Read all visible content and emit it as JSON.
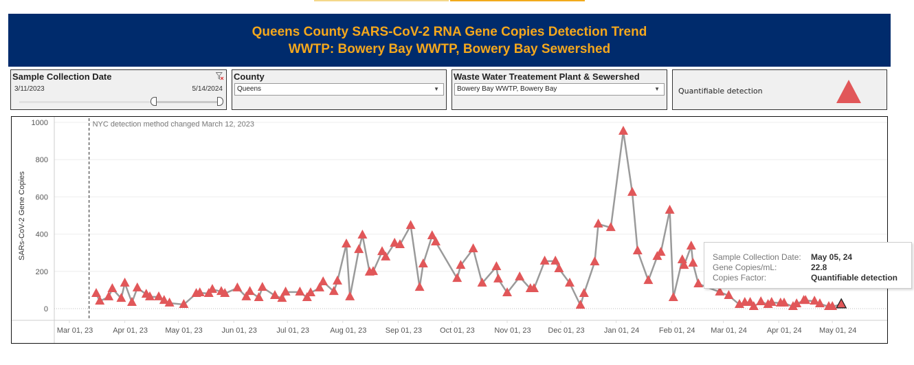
{
  "header": {
    "title_line1": "Queens County SARS-CoV-2 RNA Gene Copies Detection Trend",
    "title_line2": "WWTP: Bowery Bay WWTP, Bowery Bay Sewershed"
  },
  "filters": {
    "date": {
      "title": "Sample Collection Date",
      "start": "3/11/2023",
      "end": "5/14/2024",
      "clear_icon": "filter-clear-icon"
    },
    "county": {
      "title": "County",
      "value": "Queens"
    },
    "wwtp": {
      "title": "Waste Water Treatement Plant & Sewershed",
      "value": "Bowery Bay WWTP, Bowery Bay"
    },
    "legend": {
      "label": "Quantifiable detection",
      "color": "#e15759",
      "icon": "triangle-icon"
    }
  },
  "tooltip": {
    "rows": [
      {
        "key": "Sample Collection Date:",
        "value": "May 05, 24"
      },
      {
        "key": "Gene Copies/mL:",
        "value": "22.8"
      },
      {
        "key": "Copies Factor:",
        "value": "Quantifiable detection"
      }
    ]
  },
  "chart_data": {
    "type": "line",
    "title": "Queens County SARS-CoV-2 RNA Gene Copies Detection Trend",
    "ylabel": "SARs-CoV-2 Gene Copies",
    "xlabel": "",
    "ylim": [
      -80,
      1010
    ],
    "yticks": [
      0,
      200,
      400,
      600,
      800,
      1000
    ],
    "xticks": [
      "Mar 01, 23",
      "Apr 01, 23",
      "May 01, 23",
      "Jun 01, 23",
      "Jul 01, 23",
      "Aug 01, 23",
      "Sep 01, 23",
      "Oct 01, 23",
      "Nov 01, 23",
      "Dec 01, 23",
      "Jan 01, 24",
      "Feb 01, 24",
      "Mar 01, 24",
      "Apr 01, 24",
      "May 01, 24"
    ],
    "xrange_days": [
      -8,
      455
    ],
    "annotation": {
      "text": "NYC detection method changed March 12, 2023",
      "day": 11
    },
    "line_color": "#9a9a9a",
    "marker_color": "#e15759",
    "series": [
      {
        "name": "Quantifiable detection",
        "days": [
          15,
          17,
          22,
          24,
          29,
          31,
          35,
          38,
          43,
          45,
          50,
          53,
          56,
          64,
          71,
          73,
          78,
          80,
          85,
          87,
          94,
          99,
          101,
          106,
          108,
          115,
          119,
          121,
          129,
          133,
          135,
          140,
          142,
          148,
          150,
          155,
          157,
          162,
          164,
          168,
          170,
          175,
          177,
          182,
          185,
          191,
          196,
          198,
          203,
          205,
          217,
          219,
          226,
          231,
          239,
          240,
          245,
          252,
          258,
          260,
          266,
          272,
          274,
          280,
          286,
          288,
          294,
          296,
          303,
          310,
          315,
          318,
          324,
          329,
          331,
          336,
          338,
          343,
          344,
          348,
          349,
          352,
          364,
          369,
          375,
          378,
          381,
          383,
          387,
          391,
          393,
          398,
          400,
          405,
          407,
          411,
          412,
          417,
          420,
          425,
          427,
          432
        ],
        "values": [
          81,
          40,
          63,
          107,
          55,
          137,
          33,
          111,
          77,
          63,
          63,
          44,
          30,
          22,
          81,
          85,
          81,
          103,
          92,
          81,
          111,
          63,
          92,
          59,
          114,
          70,
          55,
          89,
          89,
          59,
          85,
          111,
          144,
          92,
          148,
          347,
          63,
          317,
          395,
          196,
          199,
          306,
          277,
          351,
          343,
          446,
          114,
          240,
          391,
          358,
          162,
          232,
          321,
          137,
          225,
          159,
          85,
          170,
          107,
          107,
          255,
          255,
          214,
          137,
          18,
          81,
          251,
          454,
          435,
          952,
          624,
          310,
          151,
          280,
          302,
          528,
          59,
          262,
          232,
          336,
          244,
          133,
          89,
          70,
          22,
          33,
          33,
          11,
          37,
          22,
          33,
          30,
          30,
          11,
          26,
          44,
          44,
          40,
          26,
          11,
          11,
          22.8
        ]
      }
    ],
    "highlighted": {
      "label": "May 05, 24",
      "value": 22.8
    }
  }
}
